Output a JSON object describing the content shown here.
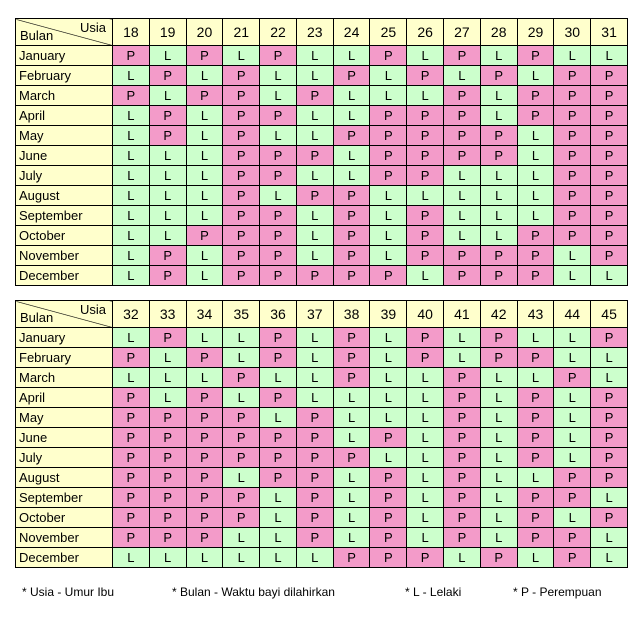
{
  "header": {
    "row_label": "Bulan",
    "col_label": "Usia"
  },
  "colors": {
    "P": "#f39bc9",
    "L": "#ccffcc",
    "header": "#ffffcc"
  },
  "tables": [
    {
      "ages": [
        18,
        19,
        20,
        21,
        22,
        23,
        24,
        25,
        26,
        27,
        28,
        29,
        30,
        31
      ],
      "rows": [
        {
          "month": "January",
          "cells": [
            "P",
            "L",
            "P",
            "L",
            "P",
            "L",
            "L",
            "P",
            "L",
            "P",
            "L",
            "P",
            "L",
            "L"
          ]
        },
        {
          "month": "February",
          "cells": [
            "L",
            "P",
            "L",
            "P",
            "L",
            "L",
            "P",
            "L",
            "P",
            "L",
            "P",
            "L",
            "P",
            "P"
          ]
        },
        {
          "month": "March",
          "cells": [
            "P",
            "L",
            "P",
            "P",
            "L",
            "P",
            "L",
            "L",
            "L",
            "P",
            "L",
            "P",
            "P",
            "P"
          ]
        },
        {
          "month": "April",
          "cells": [
            "L",
            "P",
            "L",
            "P",
            "P",
            "L",
            "L",
            "P",
            "P",
            "P",
            "L",
            "P",
            "P",
            "P"
          ]
        },
        {
          "month": "May",
          "cells": [
            "L",
            "P",
            "L",
            "P",
            "L",
            "L",
            "P",
            "P",
            "P",
            "P",
            "P",
            "L",
            "P",
            "P"
          ]
        },
        {
          "month": "June",
          "cells": [
            "L",
            "L",
            "L",
            "P",
            "P",
            "P",
            "L",
            "P",
            "P",
            "P",
            "P",
            "L",
            "P",
            "P"
          ]
        },
        {
          "month": "July",
          "cells": [
            "L",
            "L",
            "L",
            "P",
            "P",
            "L",
            "L",
            "P",
            "P",
            "L",
            "L",
            "L",
            "P",
            "P"
          ]
        },
        {
          "month": "August",
          "cells": [
            "L",
            "L",
            "L",
            "P",
            "L",
            "P",
            "P",
            "L",
            "L",
            "L",
            "L",
            "L",
            "P",
            "P"
          ]
        },
        {
          "month": "September",
          "cells": [
            "L",
            "L",
            "L",
            "P",
            "P",
            "L",
            "P",
            "L",
            "P",
            "L",
            "L",
            "L",
            "P",
            "P"
          ]
        },
        {
          "month": "October",
          "cells": [
            "L",
            "L",
            "P",
            "P",
            "P",
            "L",
            "P",
            "L",
            "P",
            "L",
            "L",
            "P",
            "P",
            "P"
          ]
        },
        {
          "month": "November",
          "cells": [
            "L",
            "P",
            "L",
            "P",
            "P",
            "L",
            "P",
            "L",
            "P",
            "P",
            "P",
            "P",
            "L",
            "P"
          ]
        },
        {
          "month": "December",
          "cells": [
            "L",
            "P",
            "L",
            "P",
            "P",
            "P",
            "P",
            "P",
            "L",
            "P",
            "P",
            "P",
            "L",
            "L"
          ]
        }
      ]
    },
    {
      "ages": [
        32,
        33,
        34,
        35,
        36,
        37,
        38,
        39,
        40,
        41,
        42,
        43,
        44,
        45
      ],
      "rows": [
        {
          "month": "January",
          "cells": [
            "L",
            "P",
            "L",
            "L",
            "P",
            "L",
            "P",
            "L",
            "P",
            "L",
            "P",
            "L",
            "L",
            "P"
          ]
        },
        {
          "month": "February",
          "cells": [
            "P",
            "L",
            "P",
            "L",
            "P",
            "L",
            "P",
            "L",
            "P",
            "L",
            "P",
            "P",
            "L",
            "L"
          ]
        },
        {
          "month": "March",
          "cells": [
            "L",
            "L",
            "L",
            "P",
            "L",
            "L",
            "P",
            "L",
            "L",
            "P",
            "L",
            "L",
            "P",
            "L"
          ]
        },
        {
          "month": "April",
          "cells": [
            "P",
            "L",
            "P",
            "L",
            "P",
            "L",
            "L",
            "L",
            "L",
            "P",
            "L",
            "P",
            "L",
            "P"
          ]
        },
        {
          "month": "May",
          "cells": [
            "P",
            "P",
            "P",
            "P",
            "L",
            "P",
            "L",
            "L",
            "L",
            "P",
            "L",
            "P",
            "L",
            "P"
          ]
        },
        {
          "month": "June",
          "cells": [
            "P",
            "P",
            "P",
            "P",
            "P",
            "P",
            "L",
            "P",
            "L",
            "P",
            "L",
            "P",
            "L",
            "P"
          ]
        },
        {
          "month": "July",
          "cells": [
            "P",
            "P",
            "P",
            "P",
            "P",
            "P",
            "P",
            "L",
            "L",
            "P",
            "L",
            "P",
            "L",
            "P"
          ]
        },
        {
          "month": "August",
          "cells": [
            "P",
            "P",
            "P",
            "L",
            "P",
            "P",
            "L",
            "P",
            "L",
            "P",
            "L",
            "L",
            "P",
            "P"
          ]
        },
        {
          "month": "September",
          "cells": [
            "P",
            "P",
            "P",
            "P",
            "L",
            "P",
            "L",
            "P",
            "L",
            "P",
            "L",
            "P",
            "P",
            "L"
          ]
        },
        {
          "month": "October",
          "cells": [
            "P",
            "P",
            "P",
            "P",
            "L",
            "P",
            "L",
            "P",
            "L",
            "P",
            "L",
            "P",
            "L",
            "P"
          ]
        },
        {
          "month": "November",
          "cells": [
            "P",
            "P",
            "P",
            "L",
            "L",
            "P",
            "L",
            "P",
            "L",
            "P",
            "L",
            "P",
            "P",
            "L"
          ]
        },
        {
          "month": "December",
          "cells": [
            "L",
            "L",
            "L",
            "L",
            "L",
            "L",
            "P",
            "P",
            "P",
            "L",
            "P",
            "L",
            "P",
            "L"
          ]
        }
      ]
    }
  ],
  "footnotes": [
    "* Usia - Umur Ibu",
    "* Bulan - Waktu bayi dilahirkan",
    "* L - Lelaki",
    "* P - Perempuan"
  ]
}
